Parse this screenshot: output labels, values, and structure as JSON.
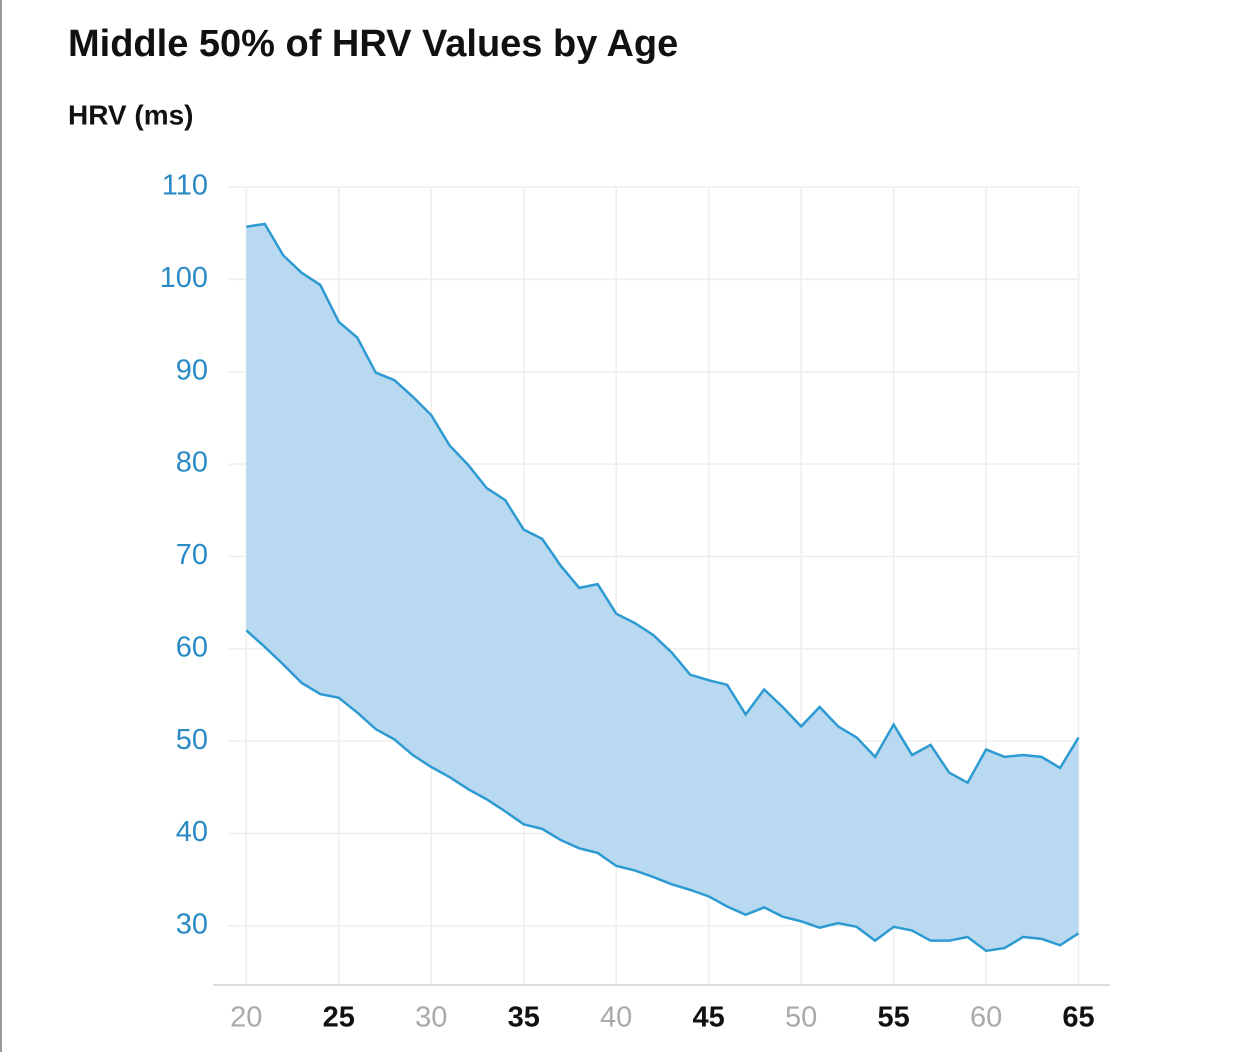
{
  "chart_data": {
    "type": "range_area",
    "title": "Middle 50% of HRV Values by Age",
    "y_label": "HRV (ms)",
    "x": [
      20,
      21,
      22,
      23,
      24,
      25,
      26,
      27,
      28,
      29,
      30,
      31,
      32,
      33,
      34,
      35,
      36,
      37,
      38,
      39,
      40,
      41,
      42,
      43,
      44,
      45,
      46,
      47,
      48,
      49,
      50,
      51,
      52,
      53,
      54,
      55,
      56,
      57,
      58,
      59,
      60,
      61,
      62,
      63,
      64,
      65
    ],
    "upper": [
      105.7,
      106.0,
      102.6,
      100.7,
      99.4,
      95.4,
      93.7,
      89.9,
      89.1,
      87.3,
      85.3,
      82.0,
      79.9,
      77.4,
      76.1,
      72.9,
      71.9,
      69.0,
      66.6,
      67.0,
      63.8,
      62.8,
      61.5,
      59.6,
      57.2,
      56.6,
      56.1,
      52.9,
      55.6,
      53.7,
      51.6,
      53.7,
      51.6,
      50.4,
      48.3,
      51.8,
      48.5,
      49.6,
      46.6,
      45.5,
      49.1,
      48.3,
      48.5,
      48.3,
      47.1,
      50.4
    ],
    "lower": [
      62.0,
      60.2,
      58.3,
      56.3,
      55.1,
      54.7,
      53.1,
      51.3,
      50.2,
      48.5,
      47.2,
      46.1,
      44.8,
      43.7,
      42.4,
      41.0,
      40.5,
      39.3,
      38.4,
      37.9,
      36.5,
      36.0,
      35.3,
      34.5,
      33.9,
      33.2,
      32.1,
      31.2,
      32.0,
      31.0,
      30.5,
      29.8,
      30.3,
      29.9,
      28.4,
      29.9,
      29.5,
      28.4,
      28.4,
      28.8,
      27.3,
      27.6,
      28.8,
      28.6,
      27.9,
      29.2
    ],
    "color": "#2d9ad2",
    "fill": "#b9d9f0",
    "xlim": [
      18.2,
      66.7
    ],
    "xticks": [
      20,
      25,
      30,
      35,
      40,
      45,
      50,
      55,
      60,
      65
    ],
    "ylim": [
      23.6,
      110
    ],
    "yticks": [
      30,
      40,
      50,
      60,
      70,
      80,
      90,
      100,
      110
    ],
    "grid": true
  }
}
